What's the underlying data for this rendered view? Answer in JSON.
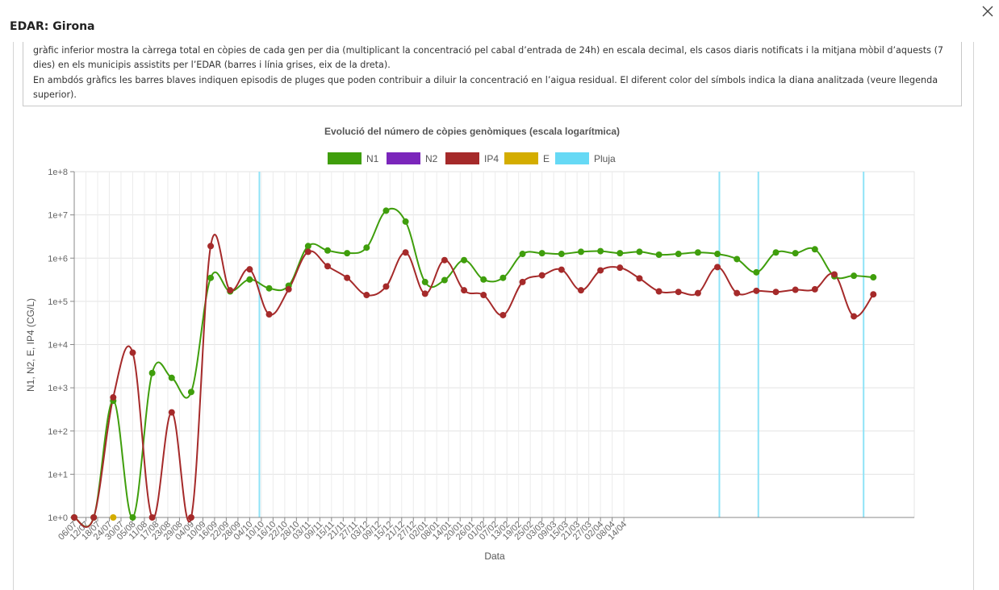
{
  "modal": {
    "title": "EDAR: Girona",
    "close_label": "close"
  },
  "description": {
    "paragraph1": "gràfic inferior mostra la càrrega total en còpies de cada gen per dia (multiplicant la concentració pel cabal d’entrada de 24h) en escala decimal, els casos diaris notificats i la mitjana mòbil d’aquests (7 dies) en els municipis assistits per l’EDAR (barres i línia grises, eix de la dreta).",
    "paragraph2": "En ambdós gràfics les barres blaves indiquen episodis de pluges que poden contribuir a diluir la concentració en l’aigua residual. El diferent color del símbols indica la diana analitzada (veure llegenda superior)."
  },
  "chart_data": {
    "type": "line",
    "title": "Evolució del número de còpies genòmiques (escala logarítmica)",
    "xlabel": "Data",
    "ylabel": "N1, N2, E, IP4 (CG/L)",
    "y_scale": "log",
    "ylim": [
      1,
      100000000
    ],
    "y_ticks": [
      "1e+0",
      "1e+1",
      "1e+2",
      "1e+3",
      "1e+4",
      "1e+5",
      "1e+6",
      "1e+7",
      "1e+8"
    ],
    "x_ticks": [
      "06/07",
      "12/07",
      "18/07",
      "24/07",
      "30/07",
      "05/08",
      "11/08",
      "17/08",
      "23/08",
      "29/08",
      "04/09",
      "10/09",
      "16/09",
      "22/09",
      "28/09",
      "04/10",
      "10/10",
      "16/10",
      "22/10",
      "28/10",
      "03/11",
      "09/11",
      "15/11",
      "21/11",
      "27/11",
      "03/12",
      "09/12",
      "15/12",
      "21/12",
      "27/12",
      "02/01",
      "08/01",
      "14/01",
      "20/01",
      "26/01",
      "01/02",
      "07/02",
      "13/02",
      "19/02",
      "25/02",
      "03/03",
      "09/03",
      "15/03",
      "21/03",
      "27/03",
      "02/04",
      "08/04",
      "14/04"
    ],
    "legend_position": "top-center",
    "grid": true,
    "legend": [
      {
        "name": "N1",
        "color": "#3f9e0c"
      },
      {
        "name": "N2",
        "color": "#7b26bb"
      },
      {
        "name": "IP4",
        "color": "#a52a2a"
      },
      {
        "name": "E",
        "color": "#d4ad00"
      },
      {
        "name": "Pluja",
        "color": "#66d9f5"
      }
    ],
    "series": [
      {
        "name": "N1",
        "color": "#3f9e0c",
        "points": [
          [
            "2020-07-06",
            1
          ],
          [
            "2020-07-16",
            1
          ],
          [
            "2020-07-26",
            500
          ],
          [
            "2020-08-05",
            1
          ],
          [
            "2020-08-15",
            2200
          ],
          [
            "2020-08-25",
            1700
          ],
          [
            "2020-09-04",
            800
          ],
          [
            "2020-09-14",
            350000
          ],
          [
            "2020-09-24",
            170000
          ],
          [
            "2020-10-04",
            320000
          ],
          [
            "2020-10-14",
            200000
          ],
          [
            "2020-10-24",
            230000
          ],
          [
            "2020-11-03",
            1900000
          ],
          [
            "2020-11-13",
            1500000
          ],
          [
            "2020-11-23",
            1300000
          ],
          [
            "2020-12-03",
            1750000
          ],
          [
            "2020-12-13",
            12500000
          ],
          [
            "2020-12-23",
            7000000
          ],
          [
            "2021-01-02",
            280000
          ],
          [
            "2021-01-12",
            310000
          ],
          [
            "2021-01-22",
            900000
          ],
          [
            "2021-02-01",
            320000
          ],
          [
            "2021-02-11",
            350000
          ],
          [
            "2021-02-21",
            1250000
          ],
          [
            "2021-03-03",
            1300000
          ],
          [
            "2021-03-13",
            1250000
          ],
          [
            "2021-03-23",
            1400000
          ],
          [
            "2021-04-02",
            1450000
          ],
          [
            "2021-04-12",
            1300000
          ],
          [
            "2021-04-22",
            1400000
          ],
          [
            "2021-05-02",
            1200000
          ],
          [
            "2021-05-12",
            1250000
          ],
          [
            "2021-05-22",
            1350000
          ],
          [
            "2021-06-01",
            1250000
          ],
          [
            "2021-06-11",
            950000
          ],
          [
            "2021-06-21",
            470000
          ],
          [
            "2021-07-01",
            1350000
          ],
          [
            "2021-07-11",
            1300000
          ],
          [
            "2021-07-21",
            1600000
          ],
          [
            "2021-07-31",
            380000
          ],
          [
            "2021-08-10",
            390000
          ],
          [
            "2021-08-20",
            360000
          ]
        ]
      },
      {
        "name": "IP4",
        "color": "#a52a2a",
        "points": [
          [
            "2020-07-06",
            1
          ],
          [
            "2020-07-16",
            1
          ],
          [
            "2020-07-26",
            600
          ],
          [
            "2020-08-05",
            6500
          ],
          [
            "2020-08-15",
            1
          ],
          [
            "2020-08-25",
            270
          ],
          [
            "2020-09-04",
            1
          ],
          [
            "2020-09-14",
            1900000
          ],
          [
            "2020-09-24",
            180000
          ],
          [
            "2020-10-04",
            550000
          ],
          [
            "2020-10-14",
            50000
          ],
          [
            "2020-10-24",
            190000
          ],
          [
            "2020-11-03",
            1400000
          ],
          [
            "2020-11-13",
            650000
          ],
          [
            "2020-11-23",
            350000
          ],
          [
            "2020-12-03",
            140000
          ],
          [
            "2020-12-13",
            220000
          ],
          [
            "2020-12-23",
            1350000
          ],
          [
            "2021-01-02",
            150000
          ],
          [
            "2021-01-12",
            900000
          ],
          [
            "2021-01-22",
            180000
          ],
          [
            "2021-02-01",
            140000
          ],
          [
            "2021-02-11",
            48000
          ],
          [
            "2021-02-21",
            280000
          ],
          [
            "2021-03-03",
            400000
          ],
          [
            "2021-03-13",
            540000
          ],
          [
            "2021-03-23",
            180000
          ],
          [
            "2021-04-02",
            520000
          ],
          [
            "2021-04-12",
            600000
          ],
          [
            "2021-04-22",
            340000
          ],
          [
            "2021-05-02",
            170000
          ],
          [
            "2021-05-12",
            165000
          ],
          [
            "2021-05-22",
            155000
          ],
          [
            "2021-06-01",
            620000
          ],
          [
            "2021-06-11",
            155000
          ],
          [
            "2021-06-21",
            175000
          ],
          [
            "2021-07-01",
            165000
          ],
          [
            "2021-07-11",
            185000
          ],
          [
            "2021-07-21",
            190000
          ],
          [
            "2021-07-31",
            420000
          ],
          [
            "2021-08-10",
            45000
          ],
          [
            "2021-08-20",
            145000
          ]
        ]
      },
      {
        "name": "E",
        "color": "#d4ad00",
        "points": [
          [
            "2020-07-26",
            1
          ]
        ]
      },
      {
        "name": "N2",
        "color": "#7b26bb",
        "points": []
      }
    ],
    "rain": [
      "2020-10-09",
      "2021-06-02",
      "2021-06-22",
      "2021-08-15"
    ]
  }
}
